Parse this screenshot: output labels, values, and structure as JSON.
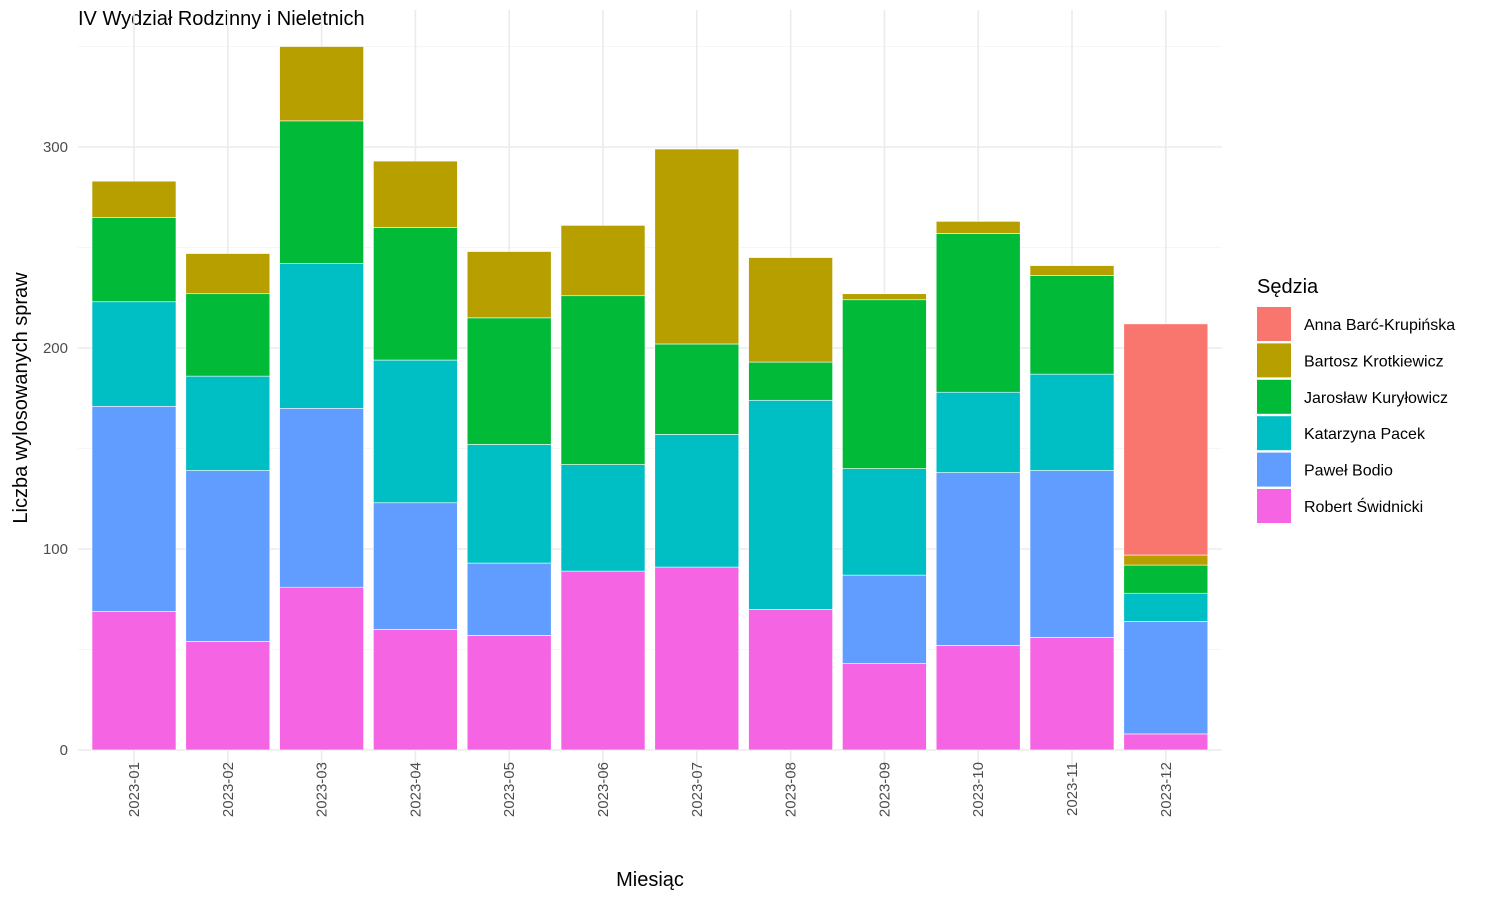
{
  "chart_data": {
    "type": "bar",
    "stacked": true,
    "title": "IV Wydział Rodzinny i Nieletnich",
    "xlabel": "Miesiąc",
    "ylabel": "Liczba wylosowanych spraw",
    "ylim": [
      0,
      350
    ],
    "yticks": [
      0,
      100,
      200,
      300
    ],
    "grid": true,
    "legend_title": "Sędzia",
    "legend_position": "right",
    "categories": [
      "2023-01",
      "2023-02",
      "2023-03",
      "2023-04",
      "2023-05",
      "2023-06",
      "2023-07",
      "2023-08",
      "2023-09",
      "2023-10",
      "2023-11",
      "2023-12"
    ],
    "series": [
      {
        "name": "Robert Świdnicki",
        "color": "#F564E3",
        "values": [
          69,
          54,
          81,
          60,
          57,
          89,
          91,
          70,
          43,
          52,
          56,
          8
        ]
      },
      {
        "name": "Paweł Bodio",
        "color": "#619CFF",
        "values": [
          102,
          85,
          89,
          63,
          36,
          0,
          0,
          0,
          44,
          86,
          83,
          56
        ]
      },
      {
        "name": "Katarzyna Pacek",
        "color": "#00BFC4",
        "values": [
          52,
          47,
          72,
          71,
          59,
          53,
          66,
          104,
          53,
          40,
          48,
          14
        ]
      },
      {
        "name": "Jarosław Kuryłowicz",
        "color": "#00BA38",
        "values": [
          42,
          41,
          71,
          66,
          63,
          84,
          45,
          19,
          84,
          79,
          49,
          14
        ]
      },
      {
        "name": "Bartosz Krotkiewicz",
        "color": "#B79F00",
        "values": [
          18,
          20,
          37,
          33,
          33,
          35,
          97,
          52,
          3,
          6,
          5,
          5
        ]
      },
      {
        "name": "Anna Barć-Krupińska",
        "color": "#F8766D",
        "values": [
          0,
          0,
          0,
          0,
          0,
          0,
          0,
          0,
          0,
          0,
          0,
          115
        ]
      }
    ],
    "legend_order": [
      "Anna Barć-Krupińska",
      "Bartosz Krotkiewicz",
      "Jarosław Kuryłowicz",
      "Katarzyna Pacek",
      "Paweł Bodio",
      "Robert Świdnicki"
    ]
  }
}
